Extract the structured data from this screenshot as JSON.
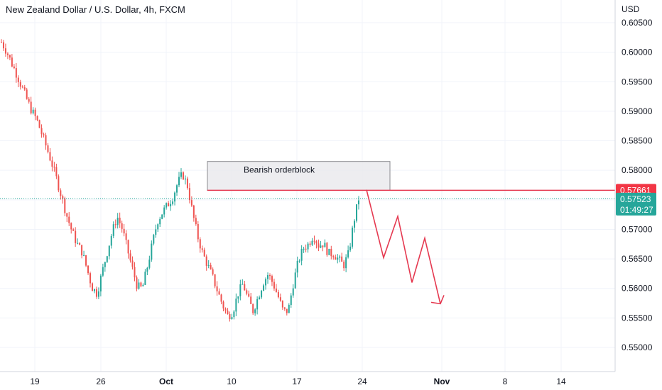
{
  "header": {
    "title": "New Zealand Dollar / U.S. Dollar, 4h, FXCM",
    "currency": "USD"
  },
  "colors": {
    "up": "#26a69a",
    "down": "#ef5350",
    "grid": "#f0f3fa",
    "axis_text": "#131722",
    "zone_line": "#e53950",
    "projection": "#e53950",
    "last_price_bg": "#26a69a",
    "zone_label_bg": "#f23645"
  },
  "annotations": {
    "zone_label": "Bearish orderblock",
    "zone_price": "0.57661",
    "last_price": "0.57523",
    "countdown": "01:49:27"
  },
  "chart_data": {
    "type": "candlestick",
    "title": "New Zealand Dollar / U.S. Dollar, 4h, FXCM",
    "y_unit": "USD",
    "ylim": [
      0.5455,
      0.6055
    ],
    "y_ticks": [
      "0.60500",
      "0.60000",
      "0.59500",
      "0.59000",
      "0.58500",
      "0.58000",
      "0.57500",
      "0.57000",
      "0.56500",
      "0.56000",
      "0.55500",
      "0.55000"
    ],
    "x_ticks": [
      "19",
      "26",
      "Oct",
      "10",
      "17",
      "24",
      "Nov",
      "8",
      "14"
    ],
    "grid": true,
    "orderblock": {
      "label": "Bearish orderblock",
      "top": 0.5815,
      "bottom": 0.5766
    },
    "resistance_line": 0.57661,
    "last_price": 0.57523,
    "projection_path": [
      0.5767,
      0.5652,
      0.5722,
      0.561,
      0.5685,
      0.5574
    ],
    "candles_close_path": [
      0.6017,
      0.6002,
      0.5982,
      0.5963,
      0.5942,
      0.5921,
      0.5901,
      0.5886,
      0.5862,
      0.5838,
      0.5812,
      0.5784,
      0.5754,
      0.5723,
      0.5697,
      0.5676,
      0.5662,
      0.5633,
      0.5602,
      0.5591,
      0.5627,
      0.5661,
      0.5695,
      0.5722,
      0.5701,
      0.5667,
      0.5634,
      0.5603,
      0.56,
      0.5637,
      0.5676,
      0.5714,
      0.5729,
      0.5741,
      0.5754,
      0.5778,
      0.5794,
      0.5773,
      0.5727,
      0.5688,
      0.5659,
      0.5639,
      0.5618,
      0.5594,
      0.5571,
      0.5553,
      0.5561,
      0.5591,
      0.5608,
      0.5582,
      0.5562,
      0.5585,
      0.561,
      0.5624,
      0.5608,
      0.5586,
      0.5561,
      0.5562,
      0.5609,
      0.5646,
      0.5668,
      0.5675,
      0.5691,
      0.5673,
      0.5676,
      0.5659,
      0.5659,
      0.5649,
      0.5639,
      0.5659,
      0.5712,
      0.5752
    ]
  }
}
